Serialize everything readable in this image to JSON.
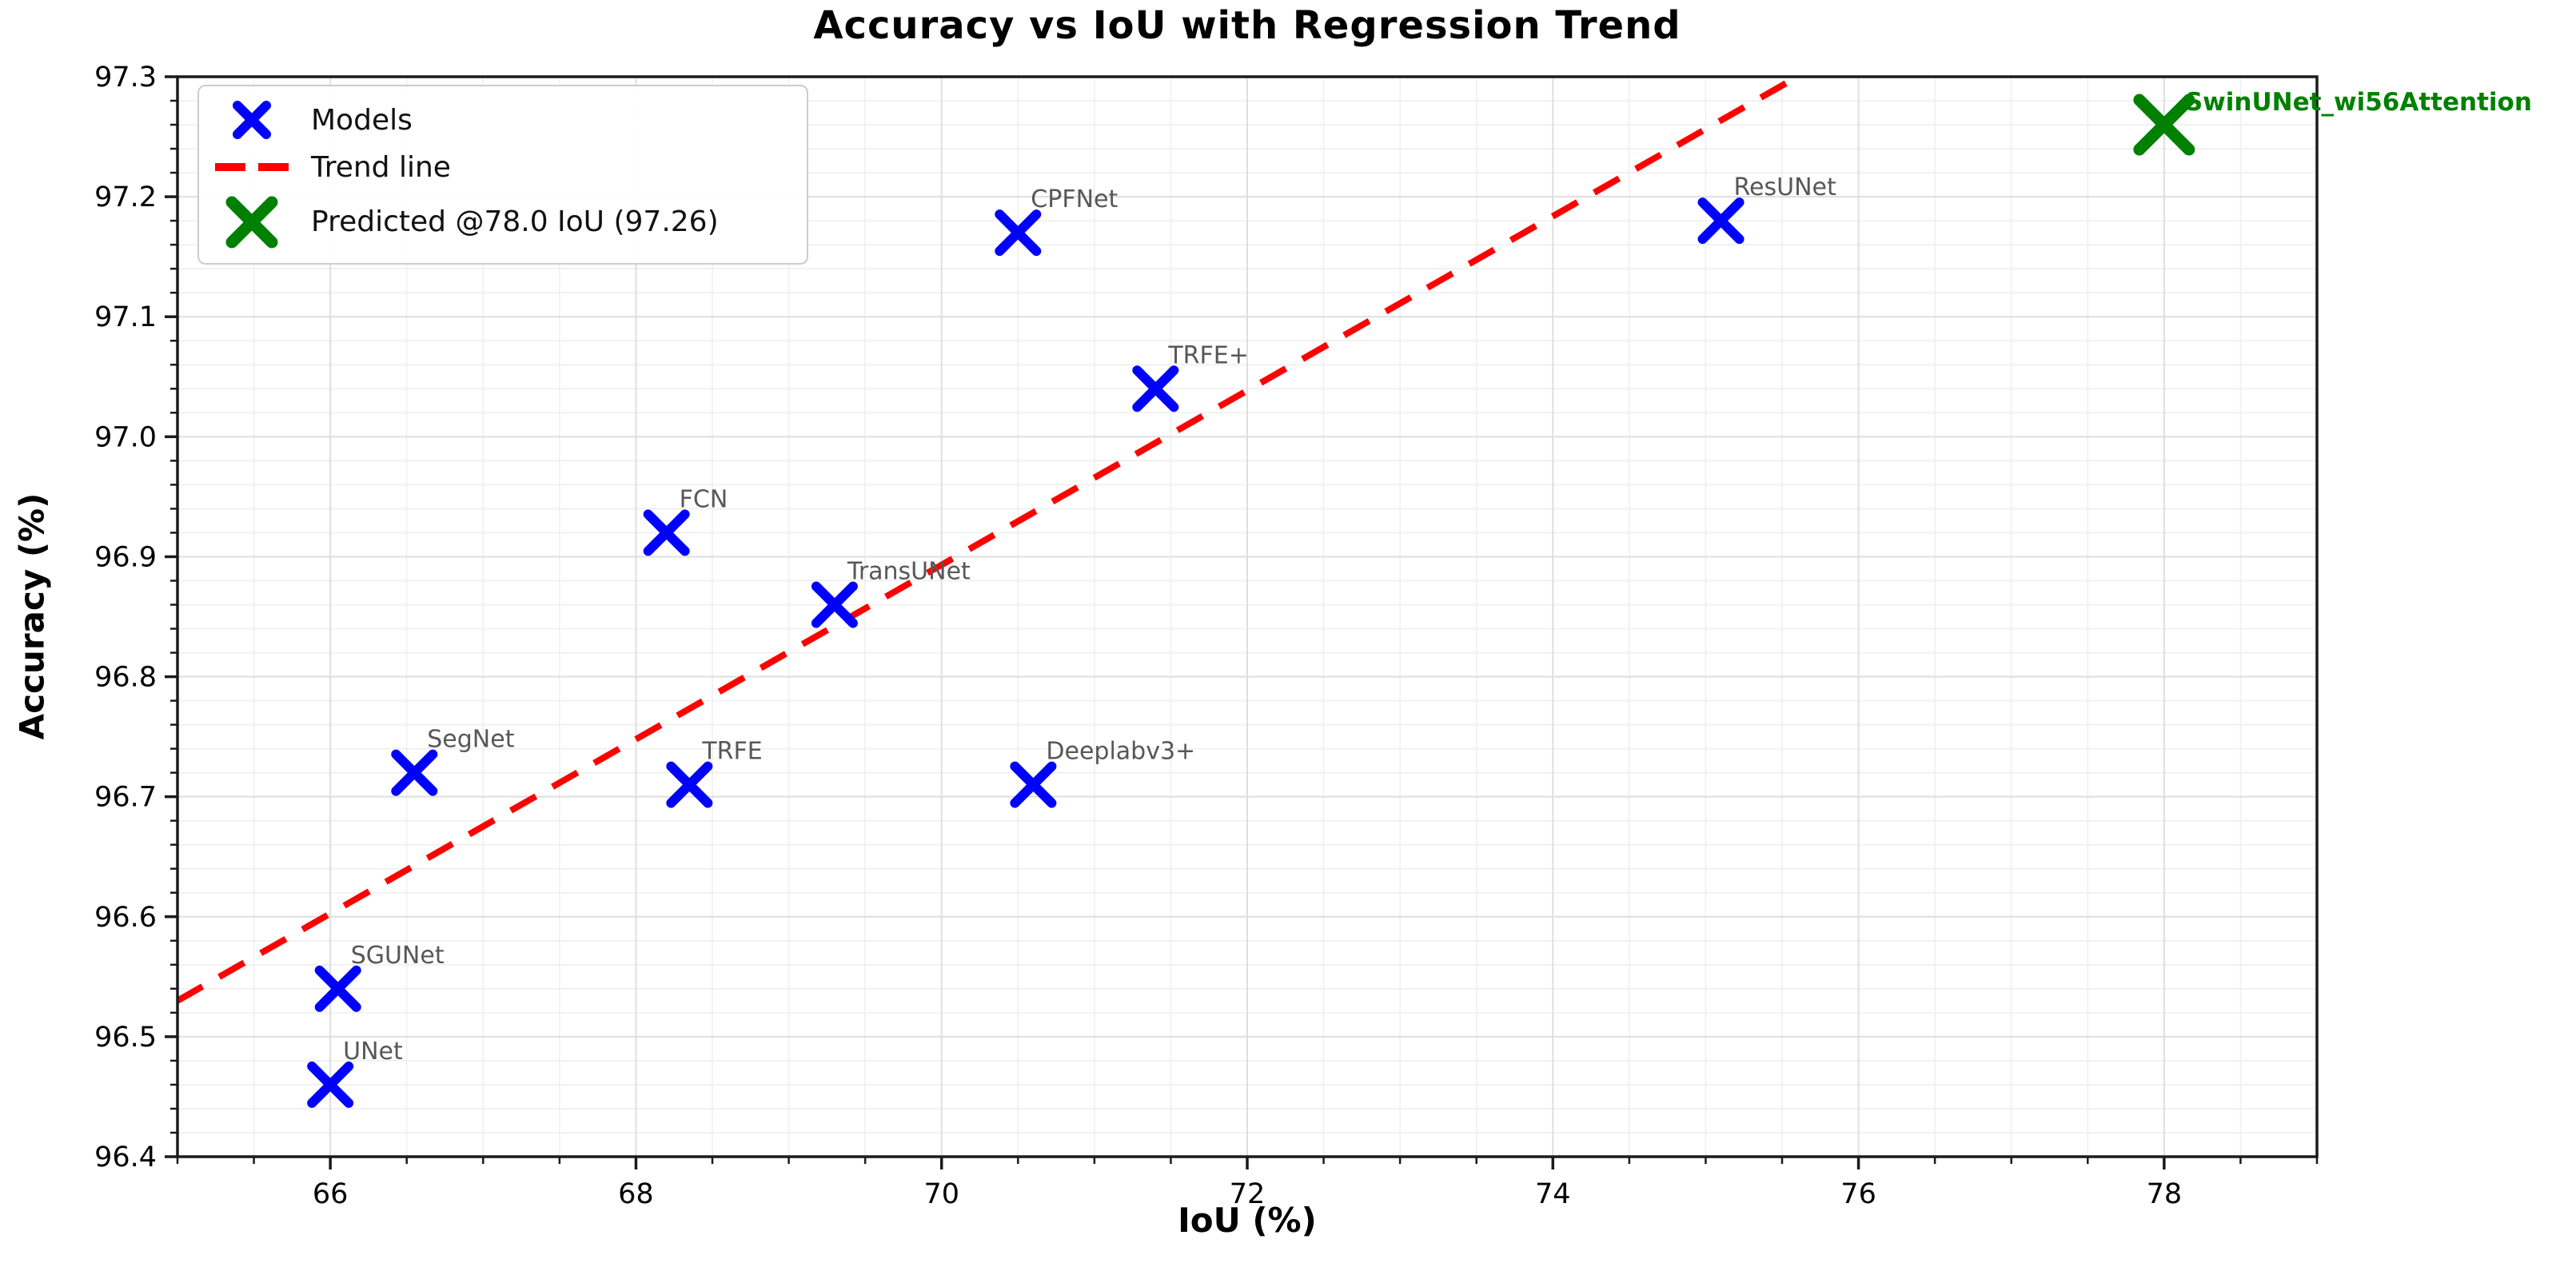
{
  "chart_data": {
    "type": "scatter",
    "title": "Accuracy vs IoU with Regression Trend",
    "xlabel": "IoU (%)",
    "ylabel": "Accuracy (%)",
    "xlim": [
      65.0,
      79.0
    ],
    "ylim": [
      96.4,
      97.3
    ],
    "x_ticks": [
      "66",
      "68",
      "70",
      "72",
      "74",
      "76",
      "78"
    ],
    "x_tick_values": [
      66,
      68,
      70,
      72,
      74,
      76,
      78
    ],
    "y_ticks": [
      "96.4",
      "96.5",
      "96.6",
      "96.7",
      "96.8",
      "96.9",
      "97.0",
      "97.1",
      "97.2",
      "97.3"
    ],
    "y_tick_values": [
      96.4,
      96.5,
      96.6,
      96.7,
      96.8,
      96.9,
      97.0,
      97.1,
      97.2,
      97.3
    ],
    "x_minor_step": 0.5,
    "y_minor_step": 0.02,
    "grid": "major+minor",
    "grid_major_color": "#dedede",
    "grid_minor_color": "#efefef",
    "axis_color": "#1a1a1a",
    "point_label_color": "#575757",
    "series": [
      {
        "name": "Models",
        "marker": "X",
        "color": "#0000ff",
        "points": [
          {
            "label": "UNet",
            "x": 66.0,
            "y": 96.46
          },
          {
            "label": "SGUNet",
            "x": 66.05,
            "y": 96.54
          },
          {
            "label": "SegNet",
            "x": 66.55,
            "y": 96.72
          },
          {
            "label": "FCN",
            "x": 68.2,
            "y": 96.92
          },
          {
            "label": "TRFE",
            "x": 68.35,
            "y": 96.71
          },
          {
            "label": "TransUNet",
            "x": 69.3,
            "y": 96.86
          },
          {
            "label": "CPFNet",
            "x": 70.5,
            "y": 97.17
          },
          {
            "label": "Deeplabv3+",
            "x": 70.6,
            "y": 96.71
          },
          {
            "label": "TRFE+",
            "x": 71.4,
            "y": 97.04
          },
          {
            "label": "ResUNet",
            "x": 75.1,
            "y": 97.18
          }
        ]
      },
      {
        "name": "Predicted",
        "marker": "X",
        "color": "#008000",
        "points": [
          {
            "label": "SwinUNet_wi56Attention",
            "x": 78.0,
            "y": 97.26
          }
        ]
      }
    ],
    "trend_line": {
      "color": "#ff0000",
      "style": "dashed",
      "x1": 65.0,
      "y1": 96.53,
      "x2": 75.6,
      "y2": 97.3
    },
    "legend": {
      "position": "upper left",
      "items": [
        {
          "label": "Models",
          "color": "#0000ff",
          "glyph": "x-marker"
        },
        {
          "label": "Trend line",
          "color": "#ff0000",
          "glyph": "dashed-line"
        },
        {
          "label": "Predicted @78.0 IoU (97.26)",
          "color": "#008000",
          "glyph": "x-marker-large"
        }
      ]
    }
  }
}
